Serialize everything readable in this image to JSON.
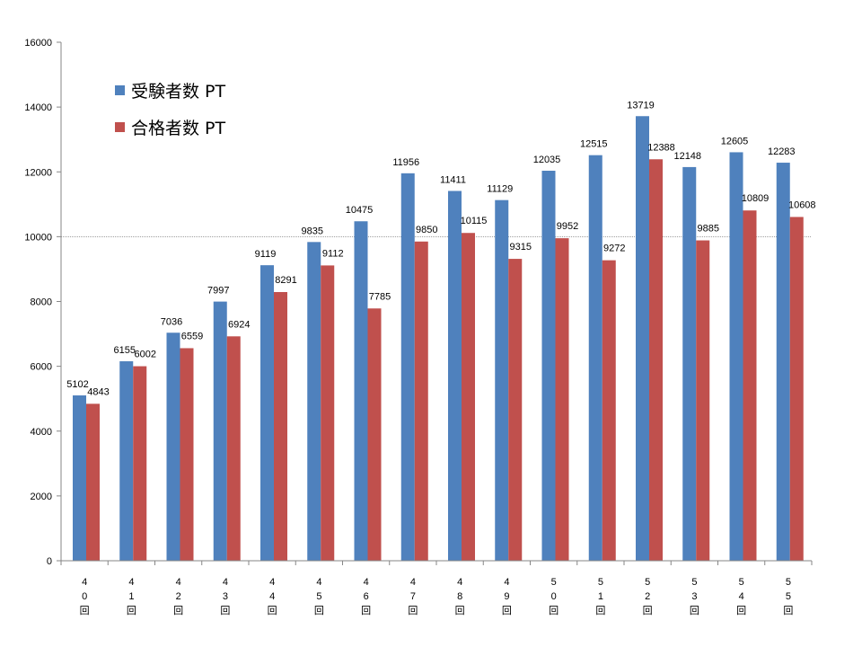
{
  "chart_data": {
    "type": "bar",
    "categories": [
      {
        "top": "4",
        "mid": "0",
        "box": "回"
      },
      {
        "top": "4",
        "mid": "1",
        "box": "回"
      },
      {
        "top": "4",
        "mid": "2",
        "box": "回"
      },
      {
        "top": "4",
        "mid": "3",
        "box": "回"
      },
      {
        "top": "4",
        "mid": "4",
        "box": "回"
      },
      {
        "top": "4",
        "mid": "5",
        "box": "回"
      },
      {
        "top": "4",
        "mid": "6",
        "box": "回"
      },
      {
        "top": "4",
        "mid": "7",
        "box": "回"
      },
      {
        "top": "4",
        "mid": "8",
        "box": "回"
      },
      {
        "top": "4",
        "mid": "9",
        "box": "回"
      },
      {
        "top": "5",
        "mid": "0",
        "box": "回"
      },
      {
        "top": "5",
        "mid": "1",
        "box": "回"
      },
      {
        "top": "5",
        "mid": "2",
        "box": "回"
      },
      {
        "top": "5",
        "mid": "3",
        "box": "回"
      },
      {
        "top": "5",
        "mid": "4",
        "box": "回"
      },
      {
        "top": "5",
        "mid": "5",
        "box": "回"
      }
    ],
    "series": [
      {
        "name": "受験者数 PT",
        "color": "#4f81bd",
        "values": [
          5102,
          6155,
          7036,
          7997,
          9119,
          9835,
          10475,
          11956,
          11411,
          11129,
          12035,
          12515,
          13719,
          12148,
          12605,
          12283
        ]
      },
      {
        "name": "合格者数 PT",
        "color": "#c0504d",
        "values": [
          4843,
          6002,
          6559,
          6924,
          8291,
          9112,
          7785,
          9850,
          10115,
          9315,
          9952,
          9272,
          12388,
          9885,
          10809,
          10608
        ]
      }
    ],
    "ylim": [
      0,
      16000
    ],
    "yticks": [
      "0",
      "2000",
      "4000",
      "6000",
      "8000",
      "10000",
      "12000",
      "14000",
      "16000"
    ],
    "reference_line": 10000,
    "legend_position": "top-left",
    "grid": false
  }
}
